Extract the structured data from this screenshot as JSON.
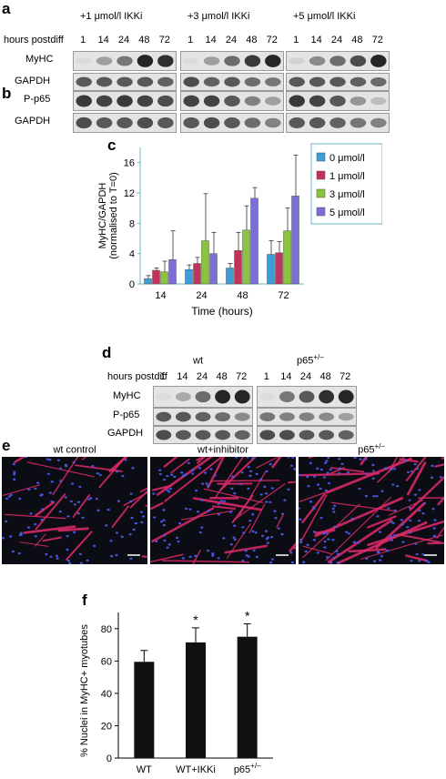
{
  "panel_a": {
    "label": "a",
    "hours_label": "hours postdiff",
    "groups": [
      {
        "title": "+1 μmol/l IKKi",
        "hours": [
          "1",
          "14",
          "24",
          "48",
          "72"
        ],
        "myhc": [
          0.05,
          0.35,
          0.55,
          0.95,
          0.9
        ],
        "gapdh": [
          0.7,
          0.7,
          0.7,
          0.7,
          0.65
        ]
      },
      {
        "title": "+3 μmol/l IKKi",
        "hours": [
          "1",
          "14",
          "24",
          "48",
          "72"
        ],
        "myhc": [
          0.05,
          0.35,
          0.6,
          0.85,
          0.95
        ],
        "gapdh": [
          0.75,
          0.65,
          0.7,
          0.6,
          0.55
        ]
      },
      {
        "title": "+5 μmol/l IKKi",
        "hours": [
          "1",
          "14",
          "24",
          "48",
          "72"
        ],
        "myhc": [
          0.1,
          0.45,
          0.6,
          0.75,
          0.95
        ],
        "gapdh": [
          0.7,
          0.7,
          0.7,
          0.65,
          0.6
        ]
      }
    ],
    "rows": [
      "MyHC",
      "GAPDH"
    ]
  },
  "panel_b": {
    "label": "b",
    "rows": [
      "P-p65",
      "GAPDH"
    ],
    "groups": [
      {
        "pp65": [
          0.85,
          0.8,
          0.85,
          0.8,
          0.75
        ],
        "gapdh": [
          0.75,
          0.7,
          0.7,
          0.75,
          0.7
        ]
      },
      {
        "pp65": [
          0.8,
          0.8,
          0.7,
          0.5,
          0.35
        ],
        "gapdh": [
          0.7,
          0.75,
          0.7,
          0.6,
          0.5
        ]
      },
      {
        "pp65": [
          0.85,
          0.8,
          0.7,
          0.4,
          0.2
        ],
        "gapdh": [
          0.7,
          0.7,
          0.65,
          0.55,
          0.5
        ]
      }
    ]
  },
  "panel_c": {
    "label": "c",
    "chart_data": {
      "type": "bar",
      "categories": [
        "14",
        "24",
        "48",
        "72"
      ],
      "series": [
        {
          "name": "0 μmol/l",
          "color": "#3d9dd6",
          "values": [
            0.7,
            1.9,
            2.1,
            3.9
          ],
          "errors": [
            0.4,
            0.6,
            0.6,
            1.8
          ]
        },
        {
          "name": "1 μmol/l",
          "color": "#c0335a",
          "values": [
            1.8,
            2.7,
            4.4,
            4.1
          ],
          "errors": [
            0.3,
            0.8,
            2.4,
            1.5
          ]
        },
        {
          "name": "3 μmol/l",
          "color": "#8ac43f",
          "values": [
            1.6,
            5.7,
            7.1,
            7.0
          ],
          "errors": [
            1.4,
            6.2,
            3.2,
            3.0
          ]
        },
        {
          "name": "5 μmol/l",
          "color": "#7a6fd6",
          "values": [
            3.2,
            4.0,
            11.3,
            11.6
          ],
          "errors": [
            3.8,
            2.8,
            1.4,
            5.4
          ]
        }
      ],
      "xlabel": "Time (hours)",
      "ylabel": "MyHC/GAPDH",
      "ylabel2": "(normalised to T=0)",
      "ylim": [
        0,
        18
      ],
      "yticks": [
        "0",
        "4",
        "8",
        "12",
        "16"
      ],
      "legend_position": "right"
    }
  },
  "panel_d": {
    "label": "d",
    "hours_label": "hours postdiff",
    "groups": [
      {
        "title": "wt",
        "sup": "",
        "hours": [
          "1",
          "14",
          "24",
          "48",
          "72"
        ],
        "myhc": [
          0.05,
          0.3,
          0.6,
          0.95,
          0.95
        ],
        "pp65": [
          0.7,
          0.7,
          0.65,
          0.6,
          0.45
        ],
        "gapdh": [
          0.75,
          0.7,
          0.7,
          0.7,
          0.65
        ]
      },
      {
        "title": "p65",
        "sup": "+/–",
        "hours": [
          "1",
          "14",
          "24",
          "48",
          "72"
        ],
        "myhc": [
          0.05,
          0.55,
          0.7,
          0.9,
          0.95
        ],
        "pp65": [
          0.55,
          0.5,
          0.5,
          0.45,
          0.35
        ],
        "gapdh": [
          0.75,
          0.75,
          0.7,
          0.7,
          0.65
        ]
      }
    ],
    "rows": [
      "MyHC",
      "P-p65",
      "GAPDH"
    ]
  },
  "panel_e": {
    "label": "e",
    "images": [
      {
        "caption": "wt  control",
        "sup": "",
        "density": 0.45
      },
      {
        "caption": "wt+inhibitor",
        "sup": "",
        "density": 0.8
      },
      {
        "caption": "p65",
        "sup": "+/–",
        "density": 0.9
      }
    ]
  },
  "panel_f": {
    "label": "f",
    "chart_data": {
      "type": "bar",
      "categories": [
        "WT",
        "WT+IKKi",
        "p65"
      ],
      "category_sup": [
        "",
        "",
        "+/–"
      ],
      "values": [
        59.5,
        71.5,
        75.0
      ],
      "errors": [
        7.0,
        9.0,
        8.0
      ],
      "significance": [
        "",
        "*",
        "*"
      ],
      "ylabel": "% Nuclei in MyHC+ myotubes",
      "ylim": [
        0,
        90
      ],
      "yticks": [
        "0",
        "20",
        "40",
        "60",
        "80"
      ],
      "bar_color": "#111111"
    }
  }
}
